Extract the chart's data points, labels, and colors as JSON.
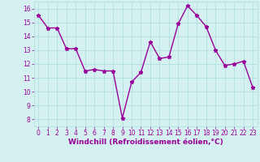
{
  "x": [
    0,
    1,
    2,
    3,
    4,
    5,
    6,
    7,
    8,
    9,
    10,
    11,
    12,
    13,
    14,
    15,
    16,
    17,
    18,
    19,
    20,
    21,
    22,
    23
  ],
  "y": [
    15.5,
    14.6,
    14.6,
    13.1,
    13.1,
    11.5,
    11.6,
    11.5,
    11.5,
    8.1,
    10.7,
    11.4,
    13.6,
    12.4,
    12.5,
    14.9,
    16.2,
    15.5,
    14.7,
    13.0,
    11.9,
    12.0,
    12.2,
    10.3
  ],
  "line_color": "#990099",
  "marker": "*",
  "marker_size": 3.5,
  "background_color": "#d4f0f0",
  "grid_color": "#aadddd",
  "xlabel": "Windchill (Refroidissement éolien,°C)",
  "xlabel_fontsize": 6.5,
  "ylim": [
    7.5,
    16.5
  ],
  "xlim": [
    -0.5,
    23.5
  ],
  "yticks": [
    8,
    9,
    10,
    11,
    12,
    13,
    14,
    15,
    16
  ],
  "xticks": [
    0,
    1,
    2,
    3,
    4,
    5,
    6,
    7,
    8,
    9,
    10,
    11,
    12,
    13,
    14,
    15,
    16,
    17,
    18,
    19,
    20,
    21,
    22,
    23
  ],
  "tick_fontsize": 5.5,
  "tick_color": "#990099",
  "axis_label_color": "#990099",
  "line_width": 1.0
}
